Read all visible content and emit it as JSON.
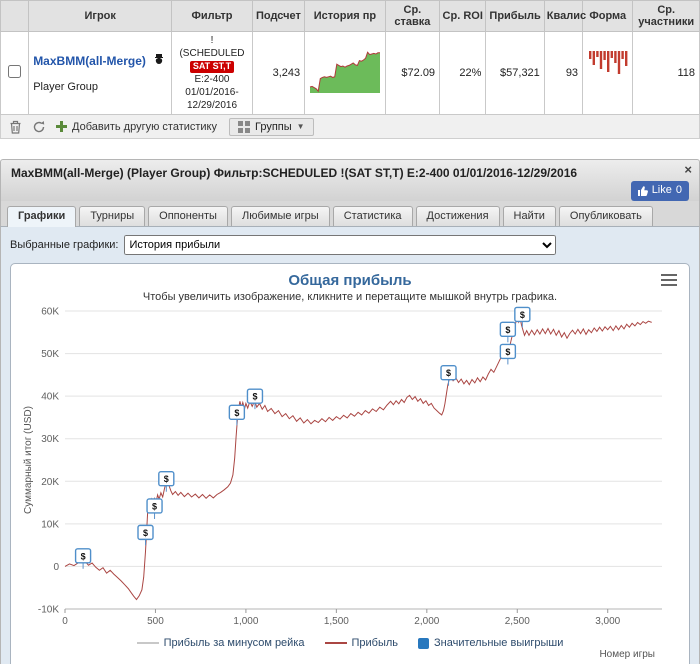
{
  "table": {
    "headers": [
      "Игрок",
      "Фильтр",
      "Подсчет",
      "История пр",
      "Ср. ставка",
      "Ср. ROI",
      "Прибыль",
      "Квалис",
      "Форма",
      "Ср. участники"
    ],
    "row": {
      "player_name": "MaxBMM(all-Merge)",
      "player_type": "Player Group",
      "filter": {
        "line1": "!",
        "line2": "(SCHEDULED",
        "badge": "SAT ST,T",
        "line3": "E:2-400",
        "line4": "01/01/2016-",
        "line5": "12/29/2016"
      },
      "count": "3,243",
      "avg_stake": "$72.09",
      "avg_roi": "22%",
      "profit": "$57,321",
      "qualifies": "93",
      "avg_entrants": "118",
      "history_spark": [
        0,
        1,
        -1,
        -3,
        -7,
        14,
        16,
        17,
        16,
        17,
        18,
        16,
        17,
        38,
        36,
        34,
        35,
        33,
        35,
        36,
        38,
        40,
        37,
        36,
        44,
        43,
        45,
        48,
        58,
        54,
        55,
        56,
        55,
        57,
        57
      ],
      "form_bars": [
        8,
        14,
        6,
        18,
        9,
        21,
        7,
        12,
        23,
        8,
        15
      ]
    }
  },
  "toolbar": {
    "add_stat_label": "Добавить другую статистику",
    "groups_label": "Группы",
    "groups_caret": "▼"
  },
  "panel": {
    "title": "MaxBMM(all-Merge) (Player Group) Фильтр:SCHEDULED !(SAT ST,T) E:2-400 01/01/2016-12/29/2016",
    "close_label": "×",
    "like_label": "Like",
    "like_count": "0",
    "tabs": [
      "Графики",
      "Турниры",
      "Оппоненты",
      "Любимые игры",
      "Статистика",
      "Достижения",
      "Найти",
      "Опубликовать"
    ],
    "active_tab": "Графики",
    "selected_charts_label": "Выбранные графики:",
    "selected_chart_value": "История прибыли"
  },
  "chart_data": {
    "type": "line",
    "title": "Общая прибыль",
    "subtitle": "Чтобы увеличить изображение, кликните и перетащите мышкой внутрь графика.",
    "xlabel": "Номер игры",
    "ylabel": "Суммарный итог (USD)",
    "xlim": [
      0,
      3300
    ],
    "ylim": [
      -10000,
      60000
    ],
    "grid": true,
    "legend_position": "bottom",
    "x_ticks": [
      0,
      500,
      1000,
      1500,
      2000,
      2500,
      3000
    ],
    "x_tick_labels": [
      "0",
      "500",
      "1,000",
      "1,500",
      "2,000",
      "2,500",
      "3,000"
    ],
    "y_ticks": [
      -10000,
      0,
      10000,
      20000,
      30000,
      40000,
      50000,
      60000
    ],
    "y_tick_labels": [
      "-10K",
      "0",
      "10K",
      "20K",
      "30K",
      "40K",
      "50K",
      "60K"
    ],
    "series": [
      {
        "name": "Прибыль",
        "color": "#AA4643",
        "points": [
          [
            0,
            0
          ],
          [
            25,
            600
          ],
          [
            50,
            200
          ],
          [
            75,
            900
          ],
          [
            100,
            1800
          ],
          [
            115,
            1000
          ],
          [
            130,
            300
          ],
          [
            150,
            800
          ],
          [
            170,
            -200
          ],
          [
            190,
            -900
          ],
          [
            210,
            -300
          ],
          [
            230,
            -1600
          ],
          [
            250,
            -900
          ],
          [
            270,
            -1800
          ],
          [
            290,
            -2600
          ],
          [
            310,
            -3400
          ],
          [
            330,
            -4300
          ],
          [
            350,
            -5200
          ],
          [
            365,
            -6100
          ],
          [
            380,
            -7000
          ],
          [
            395,
            -7800
          ],
          [
            410,
            -6900
          ],
          [
            425,
            -5500
          ],
          [
            435,
            -2500
          ],
          [
            445,
            3500
          ],
          [
            452,
            9000
          ],
          [
            458,
            13800
          ],
          [
            465,
            15600
          ],
          [
            472,
            14700
          ],
          [
            480,
            15800
          ],
          [
            488,
            14400
          ],
          [
            495,
            15900
          ],
          [
            503,
            15000
          ],
          [
            512,
            16800
          ],
          [
            520,
            15800
          ],
          [
            530,
            17300
          ],
          [
            540,
            16300
          ],
          [
            550,
            18300
          ],
          [
            558,
            19600
          ],
          [
            565,
            20600
          ],
          [
            575,
            19000
          ],
          [
            585,
            17800
          ],
          [
            595,
            16900
          ],
          [
            610,
            17600
          ],
          [
            625,
            16700
          ],
          [
            640,
            17400
          ],
          [
            660,
            16400
          ],
          [
            680,
            17200
          ],
          [
            700,
            16300
          ],
          [
            720,
            17000
          ],
          [
            740,
            16100
          ],
          [
            760,
            16900
          ],
          [
            780,
            16000
          ],
          [
            800,
            16800
          ],
          [
            820,
            16100
          ],
          [
            840,
            16900
          ],
          [
            860,
            17400
          ],
          [
            880,
            18000
          ],
          [
            900,
            18700
          ],
          [
            915,
            19600
          ],
          [
            928,
            21500
          ],
          [
            938,
            25500
          ],
          [
            946,
            30500
          ],
          [
            953,
            34500
          ],
          [
            960,
            37200
          ],
          [
            967,
            38800
          ],
          [
            975,
            37400
          ],
          [
            983,
            38500
          ],
          [
            992,
            37000
          ],
          [
            1000,
            38300
          ],
          [
            1010,
            37200
          ],
          [
            1022,
            38800
          ],
          [
            1035,
            37600
          ],
          [
            1048,
            38900
          ],
          [
            1060,
            37400
          ],
          [
            1075,
            38300
          ],
          [
            1090,
            36900
          ],
          [
            1105,
            37800
          ],
          [
            1120,
            36400
          ],
          [
            1140,
            37100
          ],
          [
            1160,
            35900
          ],
          [
            1180,
            36600
          ],
          [
            1200,
            35200
          ],
          [
            1220,
            35900
          ],
          [
            1240,
            34700
          ],
          [
            1260,
            35400
          ],
          [
            1280,
            34100
          ],
          [
            1300,
            34900
          ],
          [
            1320,
            33700
          ],
          [
            1340,
            34500
          ],
          [
            1360,
            33500
          ],
          [
            1380,
            34300
          ],
          [
            1400,
            33800
          ],
          [
            1420,
            34700
          ],
          [
            1440,
            34000
          ],
          [
            1460,
            35000
          ],
          [
            1480,
            34300
          ],
          [
            1500,
            35200
          ],
          [
            1520,
            34600
          ],
          [
            1540,
            35500
          ],
          [
            1560,
            34900
          ],
          [
            1580,
            35900
          ],
          [
            1600,
            35300
          ],
          [
            1620,
            36200
          ],
          [
            1640,
            35600
          ],
          [
            1660,
            36600
          ],
          [
            1680,
            36000
          ],
          [
            1700,
            37000
          ],
          [
            1720,
            36400
          ],
          [
            1740,
            37400
          ],
          [
            1760,
            36800
          ],
          [
            1780,
            37900
          ],
          [
            1800,
            38800
          ],
          [
            1815,
            38000
          ],
          [
            1830,
            38900
          ],
          [
            1845,
            38200
          ],
          [
            1860,
            39200
          ],
          [
            1875,
            38500
          ],
          [
            1890,
            39700
          ],
          [
            1905,
            40200
          ],
          [
            1920,
            39200
          ],
          [
            1935,
            39900
          ],
          [
            1950,
            38800
          ],
          [
            1965,
            39400
          ],
          [
            1980,
            38300
          ],
          [
            1995,
            38900
          ],
          [
            2010,
            37800
          ],
          [
            2025,
            38300
          ],
          [
            2040,
            37200
          ],
          [
            2055,
            36600
          ],
          [
            2070,
            36000
          ],
          [
            2082,
            35600
          ],
          [
            2092,
            36600
          ],
          [
            2100,
            38200
          ],
          [
            2108,
            40500
          ],
          [
            2116,
            42600
          ],
          [
            2124,
            44000
          ],
          [
            2132,
            44600
          ],
          [
            2145,
            43600
          ],
          [
            2160,
            44300
          ],
          [
            2175,
            43200
          ],
          [
            2190,
            44000
          ],
          [
            2205,
            42900
          ],
          [
            2220,
            43700
          ],
          [
            2235,
            42700
          ],
          [
            2250,
            43900
          ],
          [
            2265,
            43100
          ],
          [
            2280,
            44300
          ],
          [
            2295,
            43400
          ],
          [
            2310,
            44500
          ],
          [
            2325,
            43800
          ],
          [
            2340,
            45200
          ],
          [
            2355,
            46300
          ],
          [
            2370,
            45600
          ],
          [
            2385,
            46900
          ],
          [
            2400,
            48200
          ],
          [
            2412,
            49300
          ],
          [
            2422,
            50200
          ],
          [
            2430,
            49200
          ],
          [
            2440,
            50400
          ],
          [
            2448,
            49600
          ],
          [
            2456,
            51200
          ],
          [
            2464,
            52800
          ],
          [
            2472,
            54200
          ],
          [
            2480,
            55600
          ],
          [
            2490,
            57000
          ],
          [
            2500,
            58800
          ],
          [
            2508,
            57400
          ],
          [
            2516,
            58200
          ],
          [
            2524,
            56600
          ],
          [
            2532,
            55400
          ],
          [
            2540,
            54300
          ],
          [
            2552,
            55400
          ],
          [
            2565,
            54300
          ],
          [
            2580,
            55500
          ],
          [
            2595,
            54400
          ],
          [
            2610,
            55600
          ],
          [
            2625,
            54600
          ],
          [
            2640,
            55800
          ],
          [
            2655,
            54700
          ],
          [
            2670,
            55900
          ],
          [
            2685,
            54600
          ],
          [
            2700,
            55700
          ],
          [
            2715,
            54300
          ],
          [
            2730,
            55400
          ],
          [
            2745,
            53900
          ],
          [
            2760,
            54900
          ],
          [
            2775,
            53600
          ],
          [
            2790,
            54700
          ],
          [
            2805,
            55500
          ],
          [
            2820,
            54600
          ],
          [
            2835,
            55700
          ],
          [
            2850,
            54700
          ],
          [
            2865,
            55800
          ],
          [
            2880,
            54500
          ],
          [
            2895,
            55600
          ],
          [
            2910,
            54900
          ],
          [
            2925,
            56000
          ],
          [
            2940,
            55200
          ],
          [
            2955,
            56200
          ],
          [
            2970,
            55300
          ],
          [
            2985,
            56300
          ],
          [
            3000,
            55600
          ],
          [
            3015,
            56400
          ],
          [
            3030,
            55400
          ],
          [
            3045,
            56500
          ],
          [
            3060,
            55600
          ],
          [
            3075,
            56600
          ],
          [
            3090,
            55800
          ],
          [
            3105,
            56900
          ],
          [
            3120,
            56200
          ],
          [
            3135,
            57100
          ],
          [
            3150,
            56500
          ],
          [
            3165,
            57300
          ],
          [
            3180,
            56800
          ],
          [
            3195,
            57500
          ],
          [
            3210,
            57100
          ],
          [
            3225,
            57600
          ],
          [
            3243,
            57321
          ]
        ]
      }
    ],
    "markers": {
      "name": "Значительные выигрыши",
      "symbol": "$",
      "points": [
        [
          100,
          2500
        ],
        [
          445,
          8000
        ],
        [
          495,
          14200
        ],
        [
          560,
          20600
        ],
        [
          950,
          36200
        ],
        [
          1050,
          40000
        ],
        [
          2120,
          45500
        ],
        [
          2448,
          50500
        ],
        [
          2448,
          55700
        ],
        [
          2528,
          59200
        ]
      ]
    },
    "legend": [
      {
        "label": "Прибыль за минусом рейка",
        "type": "line",
        "color": "#c8c8c8"
      },
      {
        "label": "Прибыль",
        "type": "line",
        "color": "#AA4643"
      },
      {
        "label": "Значительные выигрыши",
        "type": "square",
        "color": "#2878be"
      }
    ]
  }
}
